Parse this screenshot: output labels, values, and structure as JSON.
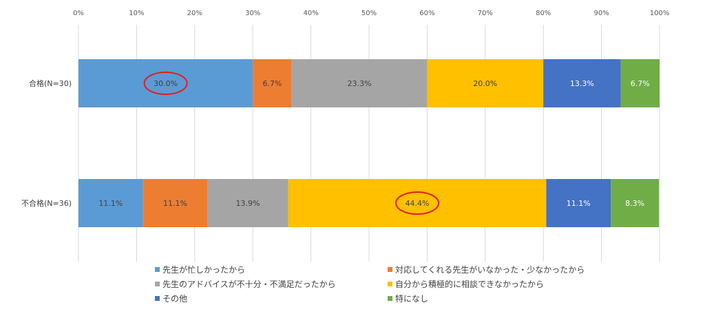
{
  "chart_data": {
    "type": "bar",
    "orientation": "horizontal",
    "stacked": true,
    "xlim": [
      0,
      100
    ],
    "ticks": [
      "0%",
      "10%",
      "20%",
      "30%",
      "40%",
      "50%",
      "60%",
      "70%",
      "80%",
      "90%",
      "100%"
    ],
    "grid": true,
    "legend_position": "bottom",
    "categories": [
      "合格(N=30)",
      "不合格(N=36)"
    ],
    "series": [
      {
        "name": "先生が忙しかったから",
        "color": "#5B9BD5",
        "label_color": "#404040",
        "values": [
          30.0,
          11.1
        ],
        "labels": [
          "30.0%",
          "11.1%"
        ]
      },
      {
        "name": "対応してくれる先生がいなかった・少なかったから",
        "color": "#ED7D31",
        "label_color": "#404040",
        "values": [
          6.7,
          11.1
        ],
        "labels": [
          "6.7%",
          "11.1%"
        ]
      },
      {
        "name": "先生のアドバイスが不十分・不満足だったから",
        "color": "#A5A5A5",
        "label_color": "#404040",
        "values": [
          23.3,
          13.9
        ],
        "labels": [
          "23.3%",
          "13.9%"
        ]
      },
      {
        "name": "自分から積極的に相談できなかったから",
        "color": "#FFC000",
        "label_color": "#404040",
        "values": [
          20.0,
          44.4
        ],
        "labels": [
          "20.0%",
          "44.4%"
        ]
      },
      {
        "name": "その他",
        "color": "#4472C4",
        "label_color": "#ffffff",
        "values": [
          13.3,
          11.1
        ],
        "labels": [
          "13.3%",
          "11.1%"
        ]
      },
      {
        "name": "特になし",
        "color": "#70AD47",
        "label_color": "#ffffff",
        "values": [
          6.7,
          8.3
        ],
        "labels": [
          "6.7%",
          "8.3%"
        ]
      }
    ],
    "highlights": [
      {
        "category": "合格(N=30)",
        "series": "先生が忙しかったから",
        "color": "#E0201B"
      },
      {
        "category": "不合格(N=36)",
        "series": "自分から積極的に相談できなかったから",
        "color": "#E0201B"
      }
    ]
  }
}
